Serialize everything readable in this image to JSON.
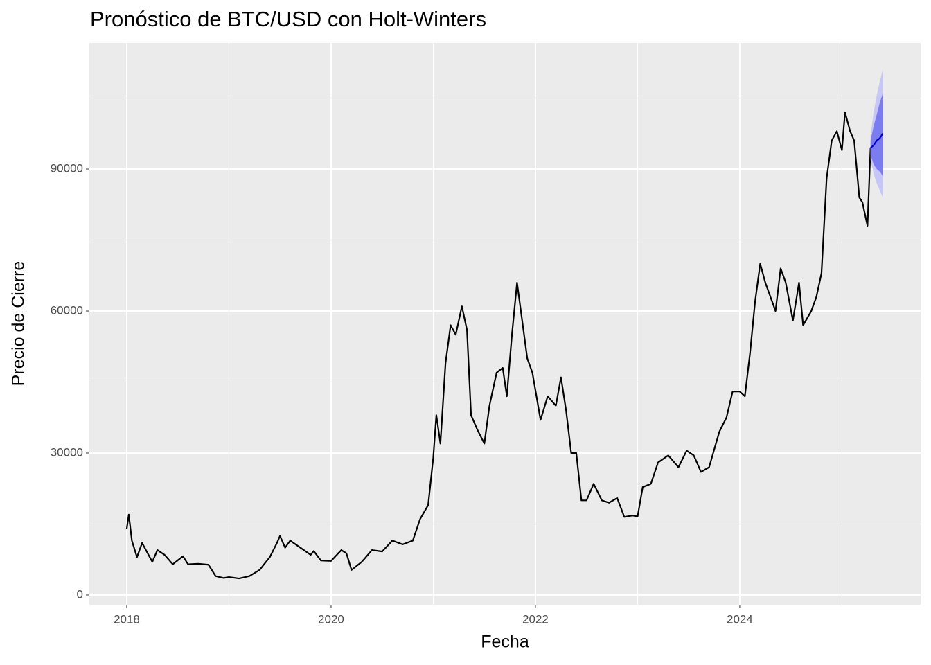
{
  "chart_data": {
    "type": "line",
    "title": "Pronóstico de BTC/USD con Holt-Winters",
    "x_label": "Fecha",
    "y_label": "Precio de Cierre",
    "xlim": [
      2017.634,
      2025.77
    ],
    "ylim": [
      -2050,
      116640
    ],
    "xticks": [
      2018,
      2020,
      2022,
      2024
    ],
    "yticks": [
      0,
      30000,
      60000,
      90000
    ],
    "x_minor": [
      2019,
      2021,
      2023,
      2025
    ],
    "y_minor": [
      15000,
      45000,
      75000,
      105000
    ],
    "grid": true,
    "history": {
      "color": "#000000",
      "x": [
        2018.0,
        2018.02,
        2018.05,
        2018.1,
        2018.15,
        2018.2,
        2018.25,
        2018.3,
        2018.37,
        2018.45,
        2018.55,
        2018.6,
        2018.7,
        2018.8,
        2018.87,
        2018.95,
        2019.0,
        2019.1,
        2019.2,
        2019.3,
        2019.4,
        2019.47,
        2019.5,
        2019.55,
        2019.6,
        2019.7,
        2019.8,
        2019.83,
        2019.9,
        2020.0,
        2020.1,
        2020.15,
        2020.2,
        2020.3,
        2020.4,
        2020.5,
        2020.6,
        2020.7,
        2020.8,
        2020.87,
        2020.95,
        2021.0,
        2021.03,
        2021.07,
        2021.12,
        2021.17,
        2021.22,
        2021.28,
        2021.33,
        2021.37,
        2021.43,
        2021.5,
        2021.55,
        2021.62,
        2021.68,
        2021.72,
        2021.77,
        2021.82,
        2021.87,
        2021.92,
        2021.97,
        2022.05,
        2022.12,
        2022.2,
        2022.25,
        2022.3,
        2022.35,
        2022.4,
        2022.45,
        2022.5,
        2022.57,
        2022.65,
        2022.72,
        2022.8,
        2022.87,
        2022.95,
        2023.0,
        2023.05,
        2023.13,
        2023.2,
        2023.3,
        2023.4,
        2023.48,
        2023.55,
        2023.62,
        2023.7,
        2023.8,
        2023.87,
        2023.93,
        2024.0,
        2024.05,
        2024.1,
        2024.15,
        2024.2,
        2024.25,
        2024.3,
        2024.35,
        2024.4,
        2024.45,
        2024.52,
        2024.58,
        2024.62,
        2024.7,
        2024.75,
        2024.8,
        2024.85,
        2024.9,
        2024.95,
        2025.0,
        2025.03,
        2025.08,
        2025.12,
        2025.17,
        2025.2,
        2025.25,
        2025.28
      ],
      "values": [
        14000,
        17000,
        11500,
        8000,
        11000,
        9000,
        7000,
        9500,
        8500,
        6500,
        8200,
        6500,
        6600,
        6400,
        4000,
        3600,
        3800,
        3500,
        4000,
        5300,
        8000,
        11000,
        12500,
        10000,
        11500,
        10000,
        8500,
        9300,
        7300,
        7200,
        9500,
        8800,
        5300,
        7000,
        9500,
        9200,
        11500,
        10700,
        11500,
        16000,
        19000,
        29000,
        38000,
        32000,
        49000,
        57000,
        55000,
        61000,
        56000,
        38000,
        35000,
        32000,
        40000,
        47000,
        48000,
        42000,
        55000,
        66000,
        58000,
        50000,
        47000,
        37000,
        42000,
        40000,
        46000,
        39000,
        30000,
        30000,
        20000,
        20000,
        23500,
        20000,
        19500,
        20500,
        16500,
        16800,
        16600,
        22800,
        23500,
        28000,
        29500,
        27000,
        30500,
        29500,
        26000,
        27000,
        34500,
        37500,
        43000,
        43000,
        42000,
        51000,
        62000,
        70000,
        66000,
        63000,
        60000,
        69000,
        66000,
        58000,
        66000,
        57000,
        60000,
        63000,
        68000,
        88000,
        96000,
        98000,
        94000,
        102000,
        98000,
        96000,
        84000,
        83000,
        78000,
        94500
      ]
    },
    "forecast": {
      "color": "#0000cc",
      "band80_color": "#7b7bf2",
      "band95_color": "#c6c6f8",
      "x": [
        2025.28,
        2025.31,
        2025.34,
        2025.37,
        2025.4
      ],
      "mean": [
        94500,
        95000,
        96000,
        96500,
        97500
      ],
      "lower80": [
        93000,
        91000,
        90000,
        89500,
        88500
      ],
      "upper80": [
        96000,
        99000,
        101500,
        104000,
        106000
      ],
      "lower95": [
        92000,
        89000,
        87000,
        85500,
        84000
      ],
      "upper95": [
        97000,
        102000,
        105500,
        108500,
        111000
      ]
    }
  }
}
